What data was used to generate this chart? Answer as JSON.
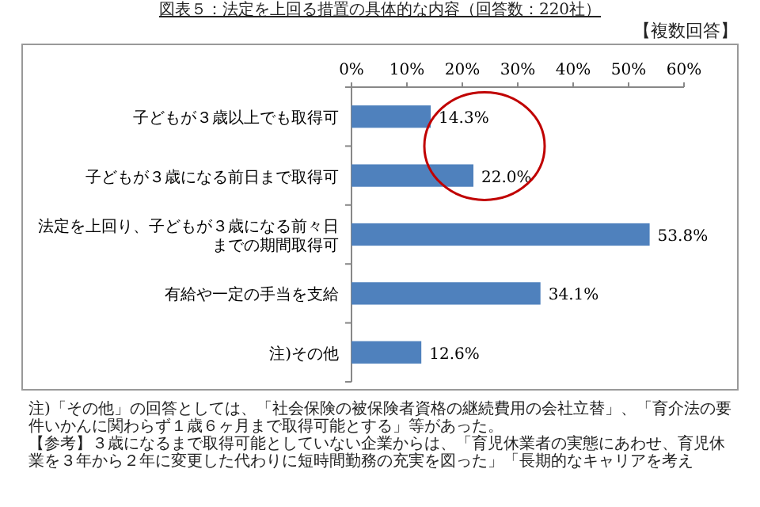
{
  "chart_data": {
    "type": "bar",
    "orientation": "horizontal",
    "title": "図表５：法定を上回る措置の具体的な内容（回答数：220社）",
    "categories": [
      "子どもが３歳以上でも取得可",
      "子どもが３歳になる前日まで取得可",
      "法定を上回り、子どもが３歳になる前々日までの期間取得可",
      "有給や一定の手当を支給",
      "注)その他"
    ],
    "values": [
      14.3,
      22.0,
      53.8,
      34.1,
      12.6
    ],
    "value_labels": [
      "14.3%",
      "22.0%",
      "53.8%",
      "34.1%",
      "12.6%"
    ],
    "color": "#4f81bd",
    "xlim": [
      0,
      60
    ],
    "xticks": [
      {
        "value": 0,
        "label": "0%"
      },
      {
        "value": 10,
        "label": "10%"
      },
      {
        "value": 20,
        "label": "20%"
      },
      {
        "value": 30,
        "label": "30%"
      },
      {
        "value": 40,
        "label": "40%"
      },
      {
        "value": 50,
        "label": "50%"
      },
      {
        "value": 60,
        "label": "60%"
      }
    ],
    "grid": false,
    "annotations": [
      "【複数回答】",
      "注)「その他」の回答としては、「社会保険の被保険者資格の継続費用の会社立替」、「育介法の要件いかんに関わらず１歳６ヶ月まで取得可能とする」等があった。",
      "【参考】３歳になるまで取得可能としていない企業からは、「育児休業者の実態にあわせ、育児休業を３年から２年に変更した代わりに短時間勤務の充実を図った」「長期的なキャリアを考え"
    ]
  }
}
